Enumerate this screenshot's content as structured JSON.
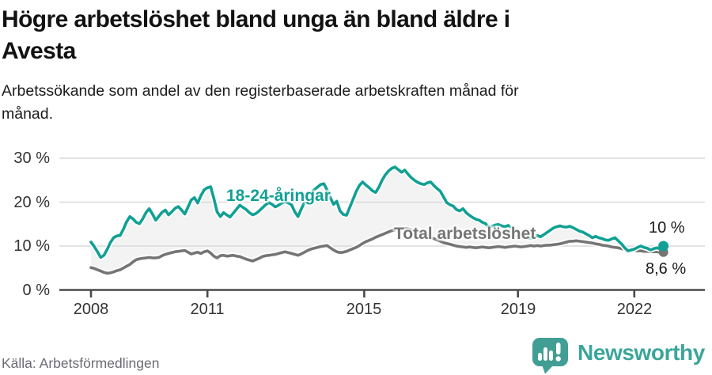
{
  "header": {
    "title_line1": "Högre arbetslöshet bland unga än bland äldre i",
    "title_line2": "Avesta",
    "subtitle_line1": "Arbetssökande som andel av den registerbaserade arbetskraften månad för",
    "subtitle_line2": "månad."
  },
  "footer": {
    "source": "Källa: Arbetsförmedlingen",
    "brand": "Newsworthy"
  },
  "colors": {
    "youth_teal": "#11a094",
    "total_gray": "#757575",
    "fill_between": "#f3f3f3",
    "gridline": "#dadada",
    "axis": "#4a4a4a",
    "brand_teal": "#3ba59b"
  },
  "chart_data": {
    "type": "line",
    "title": "Högre arbetslöshet bland unga än bland äldre i Avesta",
    "subtitle": "Arbetssökande som andel av den registerbaserade arbetskraften månad för månad.",
    "x_unit": "month",
    "x_start": "2008-01",
    "x_end": "2022-10",
    "ylim": [
      0,
      30
    ],
    "grid": true,
    "legend_position": "inline-labels",
    "yticks": [
      "30 %",
      "20 %",
      "10 %",
      "0 %"
    ],
    "xticks": [
      "2008",
      "2011",
      "2015",
      "2019",
      "2022"
    ],
    "fill_between_color": "#f3f3f3",
    "series": [
      {
        "name": "18-24-åringar",
        "color": "#11a094",
        "end_label": "10 %",
        "end_value": 10.0,
        "values": [
          10.9,
          9.9,
          8.7,
          7.4,
          7.9,
          9.2,
          10.8,
          11.9,
          12.3,
          12.4,
          13.8,
          15.5,
          16.7,
          16.2,
          15.4,
          15.1,
          16.2,
          17.6,
          18.5,
          17.3,
          15.9,
          16.8,
          17.7,
          18.2,
          17.1,
          17.8,
          18.6,
          19.0,
          18.2,
          17.3,
          18.9,
          20.5,
          21.0,
          19.8,
          21.5,
          22.8,
          23.3,
          23.5,
          20.8,
          17.8,
          16.7,
          17.6,
          17.1,
          16.6,
          17.5,
          18.4,
          19.3,
          18.8,
          18.3,
          17.6,
          17.1,
          17.4,
          18.0,
          18.7,
          19.4,
          19.9,
          19.5,
          18.9,
          19.3,
          19.8,
          20.1,
          19.8,
          19.4,
          17.8,
          16.7,
          18.4,
          19.9,
          21.1,
          22.0,
          22.8,
          23.4,
          24.0,
          24.2,
          22.8,
          21.0,
          19.5,
          20.2,
          18.0,
          17.2,
          17.0,
          18.8,
          20.6,
          22.4,
          23.8,
          24.6,
          23.9,
          23.3,
          22.6,
          22.2,
          23.4,
          25.0,
          26.2,
          27.1,
          27.7,
          28.0,
          27.4,
          26.8,
          27.3,
          26.4,
          25.6,
          25.0,
          24.5,
          24.2,
          24.0,
          24.4,
          24.6,
          23.8,
          23.1,
          22.5,
          21.2,
          19.9,
          19.4,
          19.1,
          18.3,
          18.0,
          18.5,
          17.6,
          17.0,
          16.5,
          16.1,
          15.9,
          15.4,
          15.1,
          14.2,
          14.5,
          14.8,
          14.9,
          14.6,
          14.4,
          14.7,
          14.1,
          13.4,
          13.0,
          12.5,
          12.2,
          11.9,
          11.7,
          12.0,
          12.4,
          12.1,
          12.6,
          13.1,
          13.6,
          14.1,
          14.4,
          14.6,
          14.4,
          14.3,
          14.5,
          14.2,
          13.8,
          13.4,
          13.2,
          12.8,
          12.4,
          11.9,
          12.2,
          11.9,
          11.7,
          11.4,
          11.3,
          11.6,
          11.9,
          11.2,
          10.5,
          9.6,
          8.9,
          9.1,
          9.3,
          9.7,
          10.0,
          9.7,
          9.5,
          9.1,
          9.4,
          9.6,
          9.3,
          10.0
        ]
      },
      {
        "name": "Total arbetslöshet",
        "color": "#757575",
        "end_label": "8,6 %",
        "end_value": 8.6,
        "values": [
          5.1,
          4.9,
          4.6,
          4.3,
          4.0,
          3.8,
          3.9,
          4.1,
          4.4,
          4.6,
          5.0,
          5.4,
          5.8,
          6.4,
          6.9,
          7.1,
          7.2,
          7.3,
          7.4,
          7.3,
          7.3,
          7.4,
          7.8,
          8.1,
          8.3,
          8.5,
          8.7,
          8.8,
          8.9,
          9.0,
          8.6,
          8.2,
          8.4,
          8.6,
          8.3,
          8.7,
          8.9,
          8.4,
          7.7,
          7.3,
          7.8,
          7.9,
          7.7,
          7.8,
          7.9,
          7.7,
          7.6,
          7.3,
          7.0,
          6.8,
          6.6,
          6.9,
          7.2,
          7.6,
          7.8,
          7.9,
          8.0,
          8.1,
          8.3,
          8.5,
          8.7,
          8.5,
          8.3,
          8.1,
          7.9,
          8.2,
          8.6,
          9.0,
          9.3,
          9.5,
          9.7,
          9.9,
          10.0,
          10.1,
          9.6,
          9.1,
          8.7,
          8.5,
          8.6,
          8.8,
          9.1,
          9.4,
          9.7,
          10.1,
          10.6,
          11.0,
          11.3,
          11.6,
          12.0,
          12.3,
          12.6,
          12.9,
          13.2,
          13.5,
          13.7,
          13.8,
          13.9,
          14.0,
          13.9,
          13.7,
          13.5,
          13.2,
          12.9,
          12.6,
          12.3,
          12.0,
          11.7,
          11.4,
          11.1,
          10.8,
          10.6,
          10.4,
          10.2,
          10.0,
          9.9,
          9.8,
          9.7,
          9.8,
          9.7,
          9.6,
          9.7,
          9.8,
          9.7,
          9.6,
          9.7,
          9.8,
          9.9,
          9.8,
          9.7,
          9.8,
          9.9,
          10.0,
          9.9,
          9.8,
          9.9,
          10.0,
          10.1,
          10.0,
          10.1,
          10.0,
          10.1,
          10.2,
          10.2,
          10.3,
          10.4,
          10.5,
          10.7,
          10.9,
          11.1,
          11.1,
          11.2,
          11.1,
          11.0,
          10.9,
          10.8,
          10.7,
          10.5,
          10.4,
          10.2,
          10.1,
          10.0,
          9.8,
          9.7,
          9.6,
          9.4,
          9.3,
          9.1,
          9.0,
          9.0,
          8.9,
          8.9,
          8.8,
          8.8,
          8.7,
          8.7,
          8.7,
          8.6,
          8.6
        ]
      }
    ]
  }
}
